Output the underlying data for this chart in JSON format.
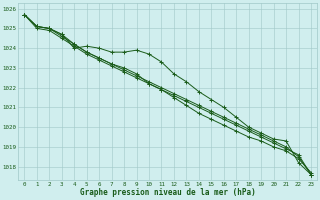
{
  "title": "Graphe pression niveau de la mer (hPa)",
  "background_color": "#d0eeee",
  "grid_color": "#a0c8c8",
  "line_color": "#1a5c1a",
  "x_ticks": [
    0,
    1,
    2,
    3,
    4,
    5,
    6,
    7,
    8,
    9,
    10,
    11,
    12,
    13,
    14,
    15,
    16,
    17,
    18,
    19,
    20,
    21,
    22,
    23
  ],
  "ylim": [
    1017.3,
    1026.3
  ],
  "yticks": [
    1018,
    1019,
    1020,
    1021,
    1022,
    1023,
    1024,
    1025,
    1026
  ],
  "series": [
    [
      1025.7,
      1025.1,
      1025.0,
      1024.7,
      1024.0,
      1024.1,
      1024.0,
      1023.8,
      1023.8,
      1023.9,
      1023.7,
      1023.3,
      1022.7,
      1022.3,
      1021.8,
      1021.4,
      1021.0,
      1020.5,
      1020.0,
      1019.7,
      1019.4,
      1019.3,
      1018.2,
      1017.6
    ],
    [
      1025.7,
      1025.1,
      1025.0,
      1024.7,
      1024.2,
      1023.8,
      1023.5,
      1023.2,
      1023.0,
      1022.7,
      1022.2,
      1021.9,
      1021.5,
      1021.1,
      1020.7,
      1020.4,
      1020.1,
      1019.8,
      1019.5,
      1019.3,
      1019.0,
      1018.8,
      1018.4,
      1017.7
    ],
    [
      1025.7,
      1025.1,
      1025.0,
      1024.6,
      1024.2,
      1023.8,
      1023.5,
      1023.2,
      1022.9,
      1022.6,
      1022.3,
      1022.0,
      1021.7,
      1021.4,
      1021.1,
      1020.8,
      1020.5,
      1020.2,
      1019.9,
      1019.6,
      1019.3,
      1019.0,
      1018.5,
      1017.6
    ],
    [
      1025.7,
      1025.0,
      1024.9,
      1024.5,
      1024.1,
      1023.7,
      1023.4,
      1023.1,
      1022.8,
      1022.5,
      1022.2,
      1021.9,
      1021.6,
      1021.3,
      1021.0,
      1020.7,
      1020.4,
      1020.1,
      1019.8,
      1019.5,
      1019.2,
      1018.9,
      1018.6,
      1017.6
    ]
  ],
  "tick_fontsize": 4.2,
  "label_fontsize": 5.5
}
